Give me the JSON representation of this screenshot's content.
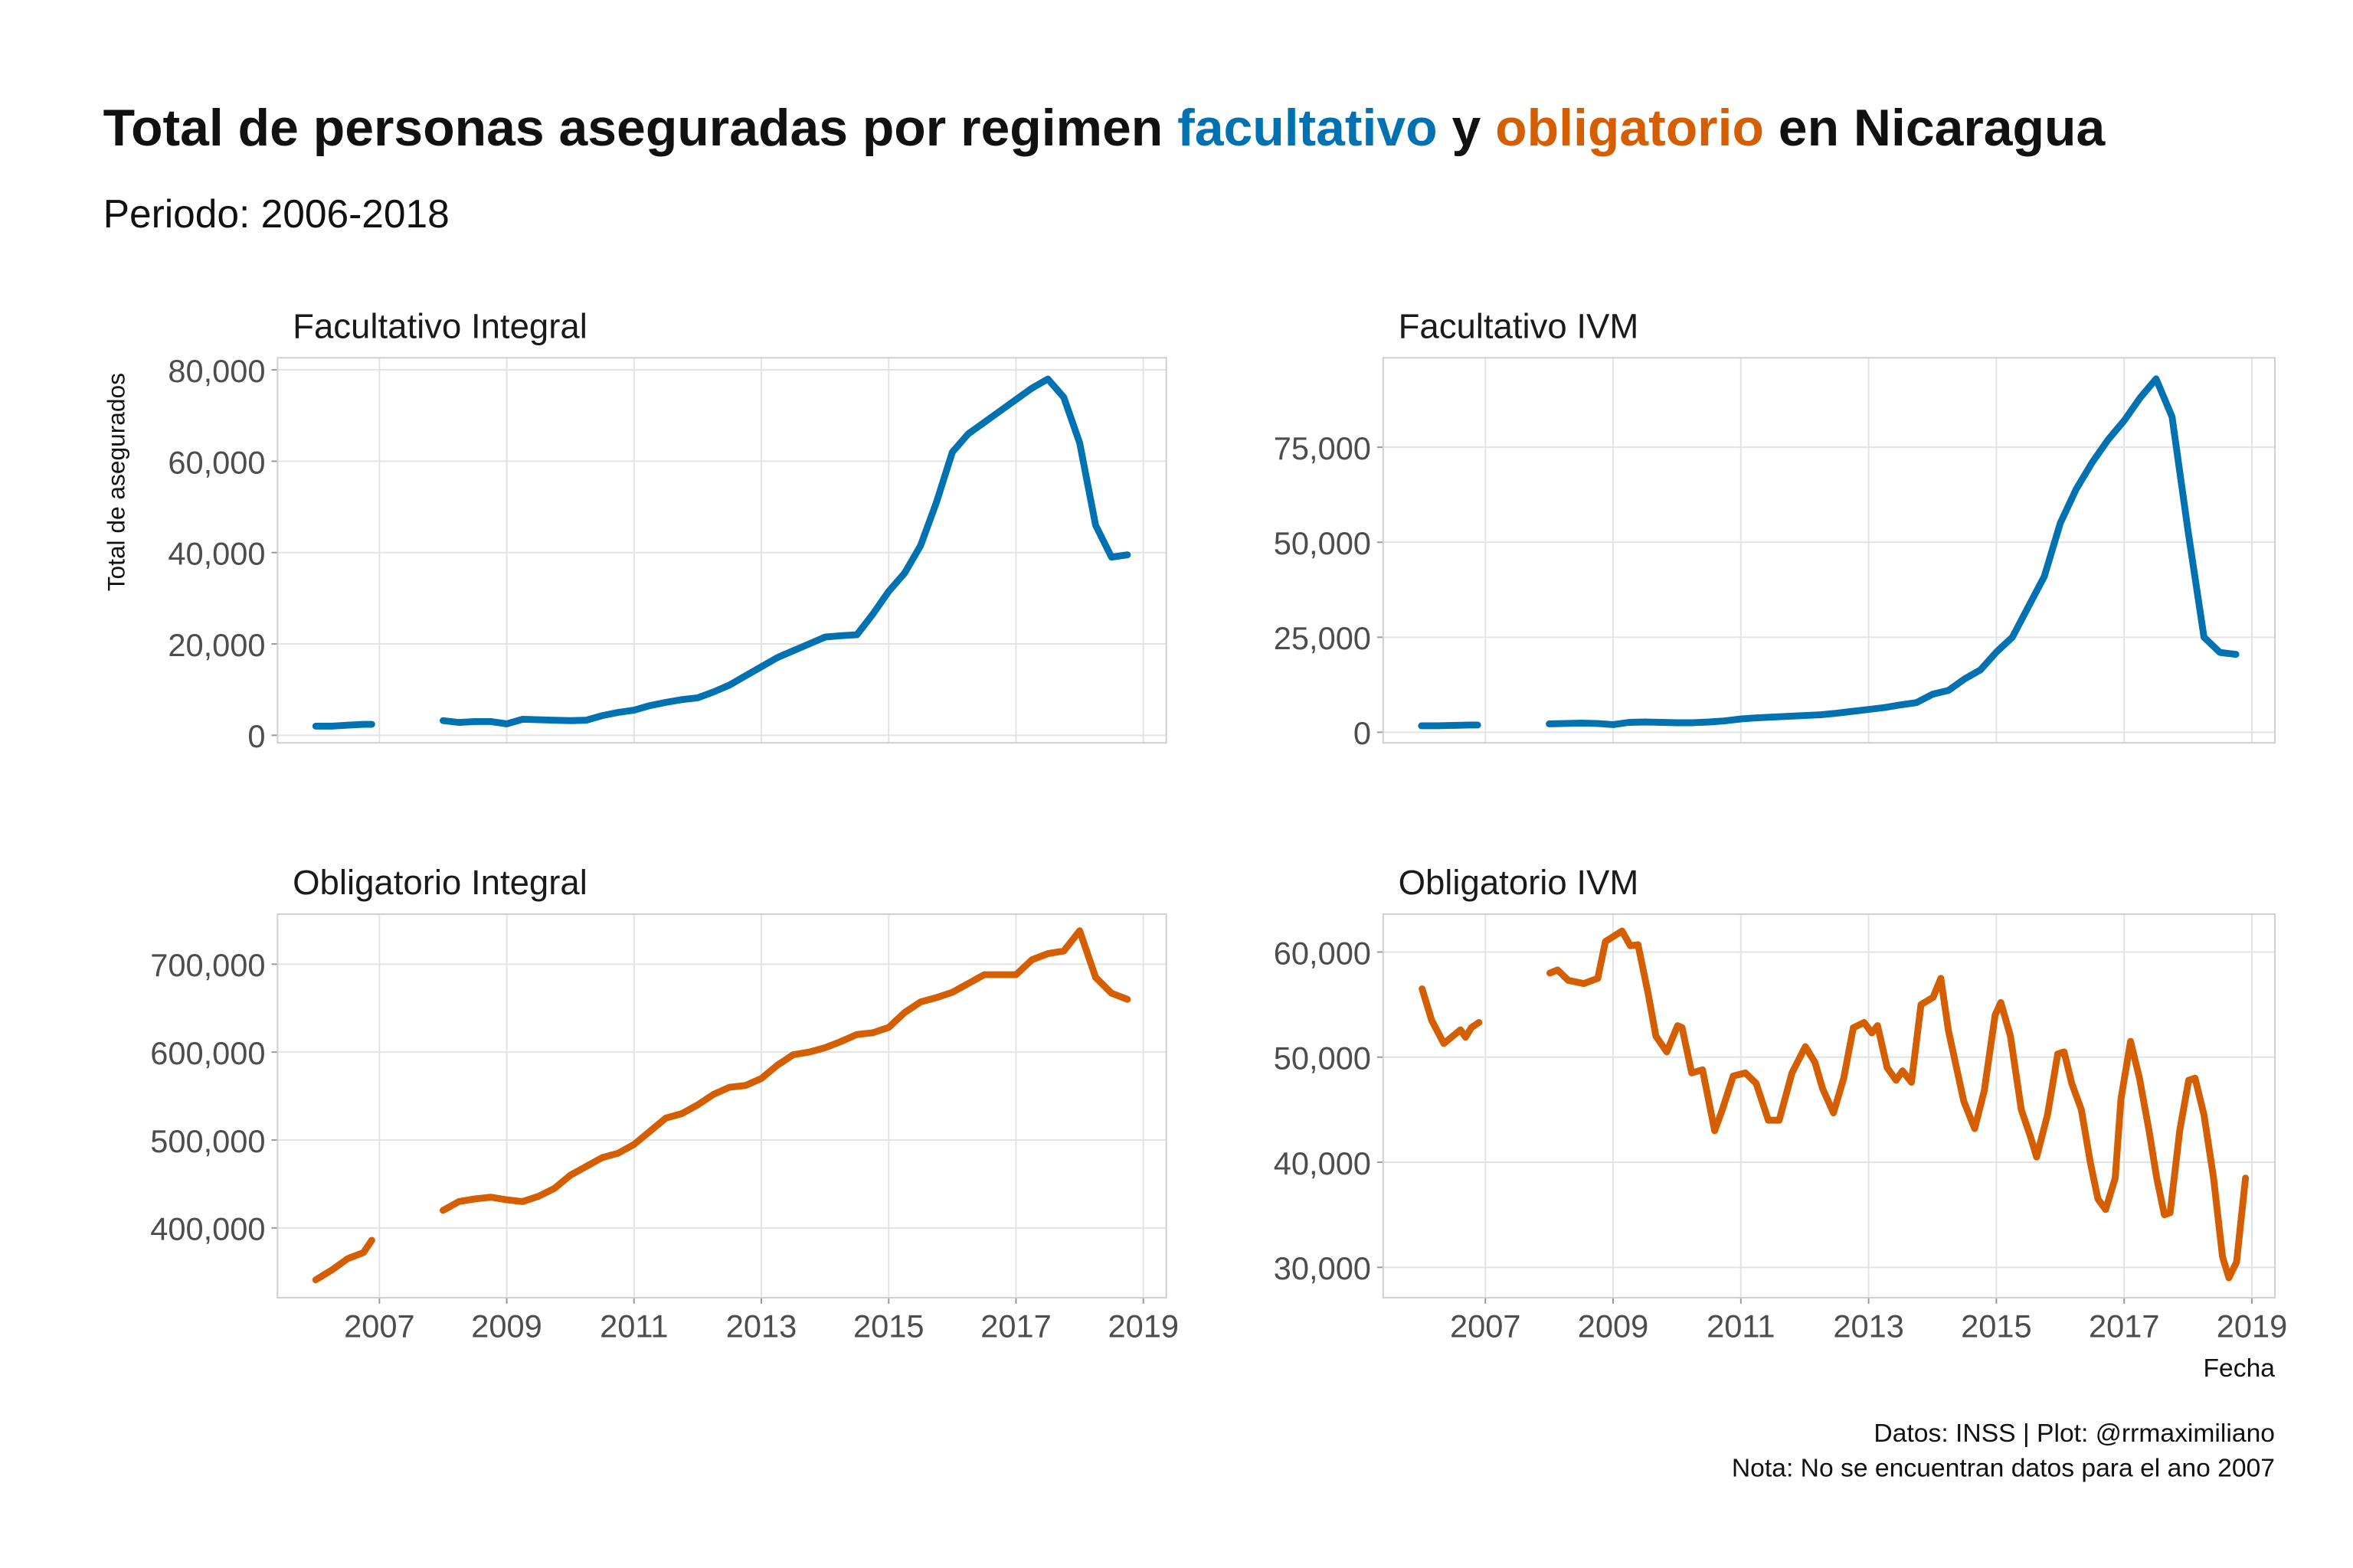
{
  "title": [
    "Total de personas aseguradas por regimen",
    "facultativo",
    "y",
    "obligatorio",
    "en Nicaragua"
  ],
  "subtitle": "Periodo: 2006-2018",
  "y_axis_label": "Total de asegurados",
  "x_axis_label": "Fecha",
  "caption": [
    "Datos: INSS | Plot: @rrmaximiliano",
    "Nota: No se encuentran datos para el ano 2007"
  ],
  "chart_data": [
    {
      "type": "line",
      "title": "Facultativo Integral",
      "color": "#0072B2",
      "grid": true,
      "x_tick_labels": false,
      "x": [
        2006,
        2006.25,
        2006.5,
        2006.75,
        2006.88,
        2007.5,
        2008,
        2008.25,
        2008.5,
        2008.75,
        2009,
        2009.25,
        2009.5,
        2009.75,
        2010,
        2010.25,
        2010.5,
        2010.75,
        2011,
        2011.25,
        2011.5,
        2011.75,
        2012,
        2012.25,
        2012.5,
        2012.75,
        2013,
        2013.25,
        2013.5,
        2013.75,
        2014,
        2014.25,
        2014.5,
        2014.75,
        2015,
        2015.25,
        2015.5,
        2015.75,
        2016,
        2016.25,
        2016.5,
        2016.75,
        2017,
        2017.25,
        2017.5,
        2017.75,
        2018,
        2018.25,
        2018.5,
        2018.75
      ],
      "values": [
        2000,
        2000,
        2200,
        2400,
        2400,
        null,
        3200,
        2800,
        3000,
        3000,
        2500,
        3500,
        3400,
        3300,
        3200,
        3300,
        4300,
        5000,
        5500,
        6500,
        7200,
        7800,
        8200,
        9500,
        11000,
        13000,
        15000,
        17000,
        18500,
        20000,
        21500,
        21800,
        22000,
        26500,
        31500,
        35500,
        41500,
        51000,
        62000,
        66000,
        68500,
        71000,
        73500,
        76000,
        78000,
        74000,
        64000,
        46000,
        39000,
        39500
      ],
      "xlim": [
        2005.4,
        2019.36
      ],
      "xticks": [
        2007,
        2009,
        2011,
        2013,
        2015,
        2017,
        2019
      ],
      "ylim": [
        -1660,
        82650
      ],
      "yticks": [
        0,
        {
          "value": 20000,
          "label": "20,000"
        },
        {
          "value": 40000,
          "label": "40,000"
        },
        {
          "value": 60000,
          "label": "60,000"
        },
        {
          "value": 80000,
          "label": "80,000"
        }
      ]
    },
    {
      "type": "line",
      "title": "Facultativo IVM",
      "color": "#0072B2",
      "grid": true,
      "x_tick_labels": false,
      "x": [
        2006,
        2006.25,
        2006.5,
        2006.75,
        2006.88,
        2007.5,
        2008,
        2008.25,
        2008.5,
        2008.75,
        2009,
        2009.25,
        2009.5,
        2009.75,
        2010,
        2010.25,
        2010.5,
        2010.75,
        2011,
        2011.25,
        2011.5,
        2011.75,
        2012,
        2012.25,
        2012.5,
        2012.75,
        2013,
        2013.25,
        2013.5,
        2013.75,
        2014,
        2014.25,
        2014.5,
        2014.75,
        2015,
        2015.25,
        2015.5,
        2015.75,
        2016,
        2016.25,
        2016.5,
        2016.75,
        2017,
        2017.25,
        2017.5,
        2017.75,
        2018,
        2018.25,
        2018.5,
        2018.75
      ],
      "values": [
        1700,
        1700,
        1800,
        1900,
        1900,
        null,
        2200,
        2300,
        2400,
        2300,
        2000,
        2600,
        2700,
        2600,
        2500,
        2500,
        2700,
        3000,
        3500,
        3800,
        4000,
        4200,
        4400,
        4600,
        5000,
        5500,
        6000,
        6500,
        7200,
        7800,
        10000,
        11000,
        14000,
        16400,
        21100,
        25000,
        33000,
        41000,
        55000,
        64000,
        71000,
        77000,
        82000,
        88000,
        93000,
        83000,
        53000,
        25000,
        21000,
        20500
      ],
      "xlim": [
        2005.4,
        2019.36
      ],
      "xticks": [
        2007,
        2009,
        2011,
        2013,
        2015,
        2017,
        2019
      ],
      "ylim": [
        -2790,
        98540
      ],
      "yticks": [
        0,
        {
          "value": 25000,
          "label": "25,000"
        },
        {
          "value": 50000,
          "label": "50,000"
        },
        {
          "value": 75000,
          "label": "75,000"
        }
      ]
    },
    {
      "type": "line",
      "title": "Obligatorio Integral",
      "color": "#D55E00",
      "grid": true,
      "x_tick_labels": true,
      "x": [
        2006,
        2006.25,
        2006.5,
        2006.75,
        2006.88,
        2007.5,
        2008,
        2008.25,
        2008.5,
        2008.75,
        2009,
        2009.25,
        2009.5,
        2009.75,
        2010,
        2010.25,
        2010.5,
        2010.75,
        2011,
        2011.25,
        2011.5,
        2011.75,
        2012,
        2012.25,
        2012.5,
        2012.75,
        2013,
        2013.25,
        2013.5,
        2013.75,
        2014,
        2014.25,
        2014.5,
        2014.75,
        2015,
        2015.25,
        2015.5,
        2015.75,
        2016,
        2016.25,
        2016.5,
        2016.75,
        2017,
        2017.25,
        2017.5,
        2017.75,
        2018,
        2018.25,
        2018.5,
        2018.75
      ],
      "values": [
        341000,
        352000,
        365000,
        372000,
        386000,
        null,
        420000,
        430000,
        433000,
        435000,
        432000,
        430000,
        436000,
        445000,
        460000,
        470000,
        480000,
        485000,
        495000,
        510000,
        525000,
        530000,
        540000,
        552000,
        560000,
        562000,
        570000,
        585000,
        597000,
        600000,
        605000,
        612000,
        620000,
        622000,
        628000,
        645000,
        657000,
        662000,
        668000,
        678000,
        688000,
        688000,
        688000,
        705000,
        712000,
        715000,
        738000,
        685000,
        667000,
        660000
      ],
      "xlim": [
        2005.4,
        2019.36
      ],
      "xticks": [
        2007,
        2009,
        2011,
        2013,
        2015,
        2017,
        2019
      ],
      "ylim": [
        320700,
        756900
      ],
      "yticks": [
        {
          "value": 400000,
          "label": "400,000"
        },
        {
          "value": 500000,
          "label": "500,000"
        },
        {
          "value": 600000,
          "label": "600,000"
        },
        {
          "value": 700000,
          "label": "700,000"
        }
      ]
    },
    {
      "type": "line",
      "title": "Obligatorio IVM",
      "color": "#D55E00",
      "grid": true,
      "x_tick_labels": true,
      "x": [
        2006.01,
        2006.16,
        2006.35,
        2006.49,
        2006.61,
        2006.69,
        2006.78,
        2006.9,
        2007.5,
        2008.01,
        2008.13,
        2008.3,
        2008.54,
        2008.76,
        2008.88,
        2009.14,
        2009.27,
        2009.39,
        2009.55,
        2009.67,
        2009.84,
        2010.01,
        2010.08,
        2010.23,
        2010.4,
        2010.59,
        2010.71,
        2010.88,
        2011.07,
        2011.24,
        2011.43,
        2011.6,
        2011.8,
        2012.01,
        2012.16,
        2012.28,
        2012.45,
        2012.61,
        2012.76,
        2012.93,
        2013.05,
        2013.14,
        2013.29,
        2013.43,
        2013.53,
        2013.67,
        2013.82,
        2014.01,
        2014.13,
        2014.25,
        2014.49,
        2014.66,
        2014.81,
        2014.98,
        2015.07,
        2015.22,
        2015.39,
        2015.53,
        2015.63,
        2015.8,
        2015.96,
        2016.06,
        2016.18,
        2016.33,
        2016.47,
        2016.59,
        2016.71,
        2016.86,
        2016.95,
        2017.1,
        2017.24,
        2017.39,
        2017.51,
        2017.63,
        2017.72,
        2017.87,
        2018.01,
        2018.11,
        2018.25,
        2018.4,
        2018.54,
        2018.64,
        2018.76,
        2018.9
      ],
      "values": [
        56500,
        53500,
        51300,
        52000,
        52600,
        51900,
        52800,
        53300,
        null,
        58000,
        58300,
        57300,
        57000,
        57500,
        61000,
        62000,
        60600,
        60700,
        56000,
        52000,
        50500,
        53000,
        52800,
        48500,
        48800,
        43000,
        45000,
        48200,
        48500,
        47500,
        44000,
        44000,
        48500,
        51000,
        49500,
        47000,
        44700,
        48000,
        52800,
        53300,
        52300,
        53000,
        49000,
        47800,
        48700,
        47600,
        55000,
        55700,
        57500,
        52500,
        45800,
        43200,
        46800,
        54000,
        55200,
        52000,
        45000,
        42500,
        40500,
        44500,
        50300,
        50500,
        47500,
        45000,
        40000,
        36500,
        35500,
        38500,
        46000,
        51500,
        48000,
        43000,
        38500,
        35000,
        35200,
        43000,
        47800,
        48000,
        44500,
        38500,
        31000,
        29000,
        30500,
        38500
      ],
      "xlim": [
        2005.4,
        2019.36
      ],
      "xticks": [
        2007,
        2009,
        2011,
        2013,
        2015,
        2017,
        2019
      ],
      "ylim": [
        27115,
        63606
      ],
      "yticks": [
        {
          "value": 30000,
          "label": "30,000"
        },
        {
          "value": 40000,
          "label": "40,000"
        },
        {
          "value": 50000,
          "label": "50,000"
        },
        {
          "value": 60000,
          "label": "60,000"
        }
      ]
    }
  ]
}
